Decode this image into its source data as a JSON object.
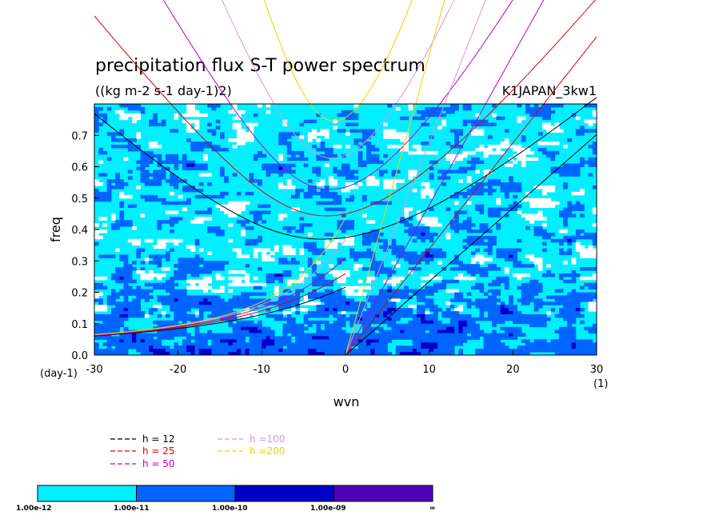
{
  "chart_data": {
    "type": "heatmap",
    "title": "precipitation flux S-T power spectrum",
    "subtitle": "((kg m-2 s-1 day-1)2)",
    "tag": "K1JAPAN_3kw1",
    "xlabel": "wvn",
    "ylabel": "freq",
    "x_unit": "(1)",
    "y_unit": "(day-1)",
    "xlim": [
      -30,
      30
    ],
    "ylim": [
      0,
      0.8
    ],
    "x_ticks": [
      -30,
      -20,
      -10,
      0,
      10,
      20,
      30
    ],
    "y_ticks": [
      0.0,
      0.1,
      0.2,
      0.3,
      0.4,
      0.5,
      0.6,
      0.7
    ],
    "x_tick_labels": [
      "-30",
      "-20",
      "-10",
      "0",
      "10",
      "20",
      "30"
    ],
    "y_tick_labels": [
      "0.0",
      "0.1",
      "0.2",
      "0.3",
      "0.4",
      "0.5",
      "0.6",
      "0.7"
    ],
    "color_levels": {
      "labels": [
        "1.00e-12",
        "1.00e-11",
        "1.00e-10",
        "1.00e-09",
        "∞"
      ],
      "colors": [
        "#00f0ff",
        "#0064ff",
        "#0000c8",
        "#5000b4"
      ]
    },
    "dispersion_curves": [
      {
        "name": "h = 12",
        "h": 12,
        "color": "#000000"
      },
      {
        "name": "h = 25",
        "h": 25,
        "color": "#e00000"
      },
      {
        "name": "h = 50",
        "h": 50,
        "color": "#c000c0"
      },
      {
        "name": "h =100",
        "h": 100,
        "color": "#e090e0"
      },
      {
        "name": "h =200",
        "h": 200,
        "color": "#f0d000"
      }
    ]
  }
}
